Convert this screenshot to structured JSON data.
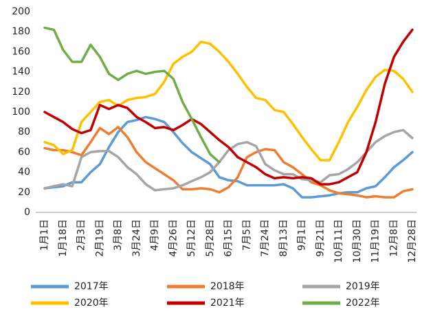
{
  "chart_data": {
    "type": "line",
    "categories": [
      "1月1日",
      null,
      "1月18日",
      null,
      "2月3日",
      null,
      "2月19日",
      null,
      "3月8日",
      null,
      "3月24日",
      null,
      "4月9日",
      null,
      "4月26日",
      null,
      "5月12日",
      null,
      "5月28日",
      null,
      "6月15日",
      null,
      "7月5日",
      null,
      "7月24日",
      null,
      "8月13日",
      null,
      "9月1日",
      null,
      "9月21日",
      null,
      "10月11日",
      null,
      "10月30日",
      null,
      "11月19日",
      null,
      "12月8日",
      null,
      "12月28日"
    ],
    "series": [
      {
        "name": "2017年",
        "color": "#5b9bd5",
        "values": [
          24,
          25,
          26,
          30,
          30,
          40,
          48,
          65,
          80,
          90,
          92,
          95,
          93,
          90,
          80,
          69,
          60,
          54,
          48,
          35,
          32,
          31,
          27,
          27,
          27,
          27,
          28,
          24,
          15,
          15,
          16,
          17,
          19,
          20,
          20,
          24,
          26,
          35,
          45,
          52,
          60
        ]
      },
      {
        "name": "2018年",
        "color": "#ed7d31",
        "values": [
          64,
          62,
          62,
          60,
          57,
          70,
          84,
          78,
          85,
          75,
          60,
          50,
          44,
          38,
          32,
          23,
          23,
          24,
          23,
          20,
          25,
          35,
          55,
          60,
          63,
          62,
          50,
          45,
          38,
          30,
          27,
          22,
          19,
          18,
          17,
          15,
          16,
          15,
          15,
          21,
          23
        ]
      },
      {
        "name": "2019年",
        "color": "#a5a5a5",
        "values": [
          24,
          26,
          28,
          26,
          55,
          60,
          61,
          61,
          55,
          45,
          38,
          28,
          22,
          23,
          24,
          27,
          31,
          35,
          40,
          50,
          62,
          68,
          70,
          66,
          48,
          42,
          38,
          38,
          33,
          32,
          30,
          37,
          38,
          43,
          50,
          60,
          70,
          76,
          80,
          82,
          74
        ]
      },
      {
        "name": "2020年",
        "color": "#ffc000",
        "values": [
          70,
          67,
          58,
          62,
          90,
          100,
          110,
          112,
          106,
          112,
          114,
          115,
          118,
          130,
          148,
          155,
          160,
          170,
          168,
          160,
          150,
          138,
          125,
          114,
          112,
          102,
          100,
          88,
          75,
          63,
          52,
          52,
          70,
          90,
          105,
          122,
          135,
          142,
          141,
          133,
          120
        ]
      },
      {
        "name": "2021年",
        "color": "#c00000",
        "values": [
          100,
          95,
          90,
          83,
          79,
          82,
          107,
          103,
          107,
          104,
          95,
          90,
          84,
          85,
          82,
          87,
          93,
          88,
          80,
          72,
          65,
          55,
          50,
          45,
          38,
          34,
          35,
          34,
          35,
          34,
          28,
          28,
          30,
          35,
          40,
          60,
          90,
          128,
          155,
          170,
          182
        ]
      },
      {
        "name": "2022年",
        "color": "#70ad47",
        "values": [
          184,
          182,
          162,
          150,
          150,
          167,
          155,
          138,
          132,
          138,
          141,
          138,
          140,
          141,
          133,
          110,
          93,
          75,
          58,
          50,
          null,
          null,
          null,
          null,
          null,
          null,
          null,
          null,
          null,
          null,
          null,
          null,
          null,
          null,
          null,
          null,
          null,
          null,
          null,
          null,
          null
        ]
      }
    ],
    "ylim": [
      0,
      200
    ],
    "yticks": [
      0,
      20,
      40,
      60,
      80,
      100,
      120,
      140,
      160,
      180,
      200
    ],
    "grid": false
  }
}
